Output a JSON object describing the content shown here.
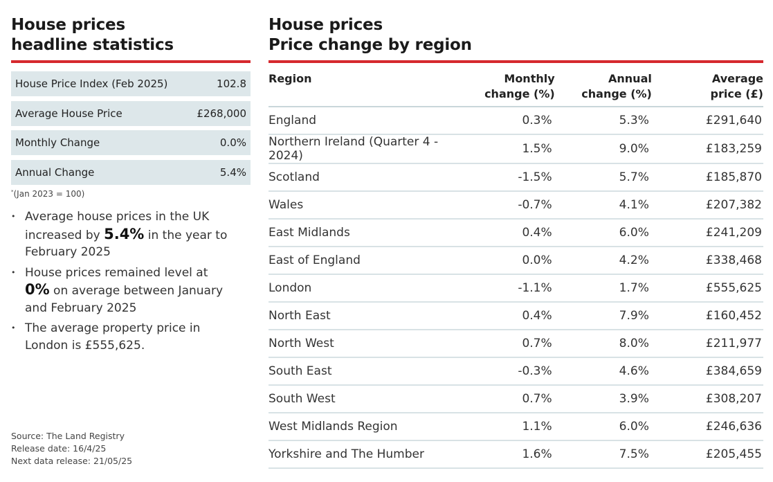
{
  "left": {
    "title_line1": "House prices",
    "title_line2": "headline statistics",
    "stats": [
      {
        "label": "House Price Index (Feb 2025)",
        "value": "102.8"
      },
      {
        "label": "Average House Price",
        "value": "£268,000"
      },
      {
        "label": "Monthly Change",
        "value": "0.0%"
      },
      {
        "label": "Annual Change",
        "value": "5.4%"
      }
    ],
    "footnote_mark": "*",
    "footnote_text": "(Jan 2023 = 100)",
    "bullets": [
      {
        "pre": "Average house prices in the UK increased by ",
        "highlight": "5.4%",
        "post": " in the year to February 2025"
      },
      {
        "pre": "House prices remained level at ",
        "highlight": "0%",
        "post": " on average between January and February 2025"
      },
      {
        "pre": "The average property price in London is £555,625.",
        "highlight": "",
        "post": ""
      }
    ],
    "source": "Source: The Land Registry",
    "release_date": "Release date: 16/4/25",
    "next_release": "Next data release: 21/05/25"
  },
  "right": {
    "title_line1": "House prices",
    "title_line2": "Price change by region",
    "headers": {
      "region": "Region",
      "monthly_1": "Monthly",
      "monthly_2": "change (%)",
      "annual_1": "Annual",
      "annual_2": "change (%)",
      "price_1": "Average",
      "price_2": "price (£)"
    },
    "rows": [
      {
        "region": "England",
        "monthly": "0.3%",
        "annual": "5.3%",
        "price": "£291,640"
      },
      {
        "region": "Northern Ireland (Quarter 4 - 2024)",
        "monthly": "1.5%",
        "annual": "9.0%",
        "price": "£183,259"
      },
      {
        "region": "Scotland",
        "monthly": "-1.5%",
        "annual": "5.7%",
        "price": "£185,870"
      },
      {
        "region": "Wales",
        "monthly": "-0.7%",
        "annual": "4.1%",
        "price": "£207,382"
      },
      {
        "region": "East Midlands",
        "monthly": "0.4%",
        "annual": "6.0%",
        "price": "£241,209"
      },
      {
        "region": "East of England",
        "monthly": "0.0%",
        "annual": "4.2%",
        "price": "£338,468"
      },
      {
        "region": "London",
        "monthly": "-1.1%",
        "annual": "1.7%",
        "price": "£555,625"
      },
      {
        "region": "North East",
        "monthly": "0.4%",
        "annual": "7.9%",
        "price": "£160,452"
      },
      {
        "region": "North West",
        "monthly": "0.7%",
        "annual": "8.0%",
        "price": "£211,977"
      },
      {
        "region": "South East",
        "monthly": "-0.3%",
        "annual": "4.6%",
        "price": "£384,659"
      },
      {
        "region": "South West",
        "monthly": "0.7%",
        "annual": "3.9%",
        "price": "£308,207"
      },
      {
        "region": "West Midlands Region",
        "monthly": "1.1%",
        "annual": "6.0%",
        "price": "£246,636"
      },
      {
        "region": "Yorkshire and The Humber",
        "monthly": "1.6%",
        "annual": "7.5%",
        "price": "£205,455"
      }
    ]
  },
  "colors": {
    "accent": "#d6282e",
    "stat_bg": "#dde7ea",
    "row_border": "#d8e2e5"
  }
}
